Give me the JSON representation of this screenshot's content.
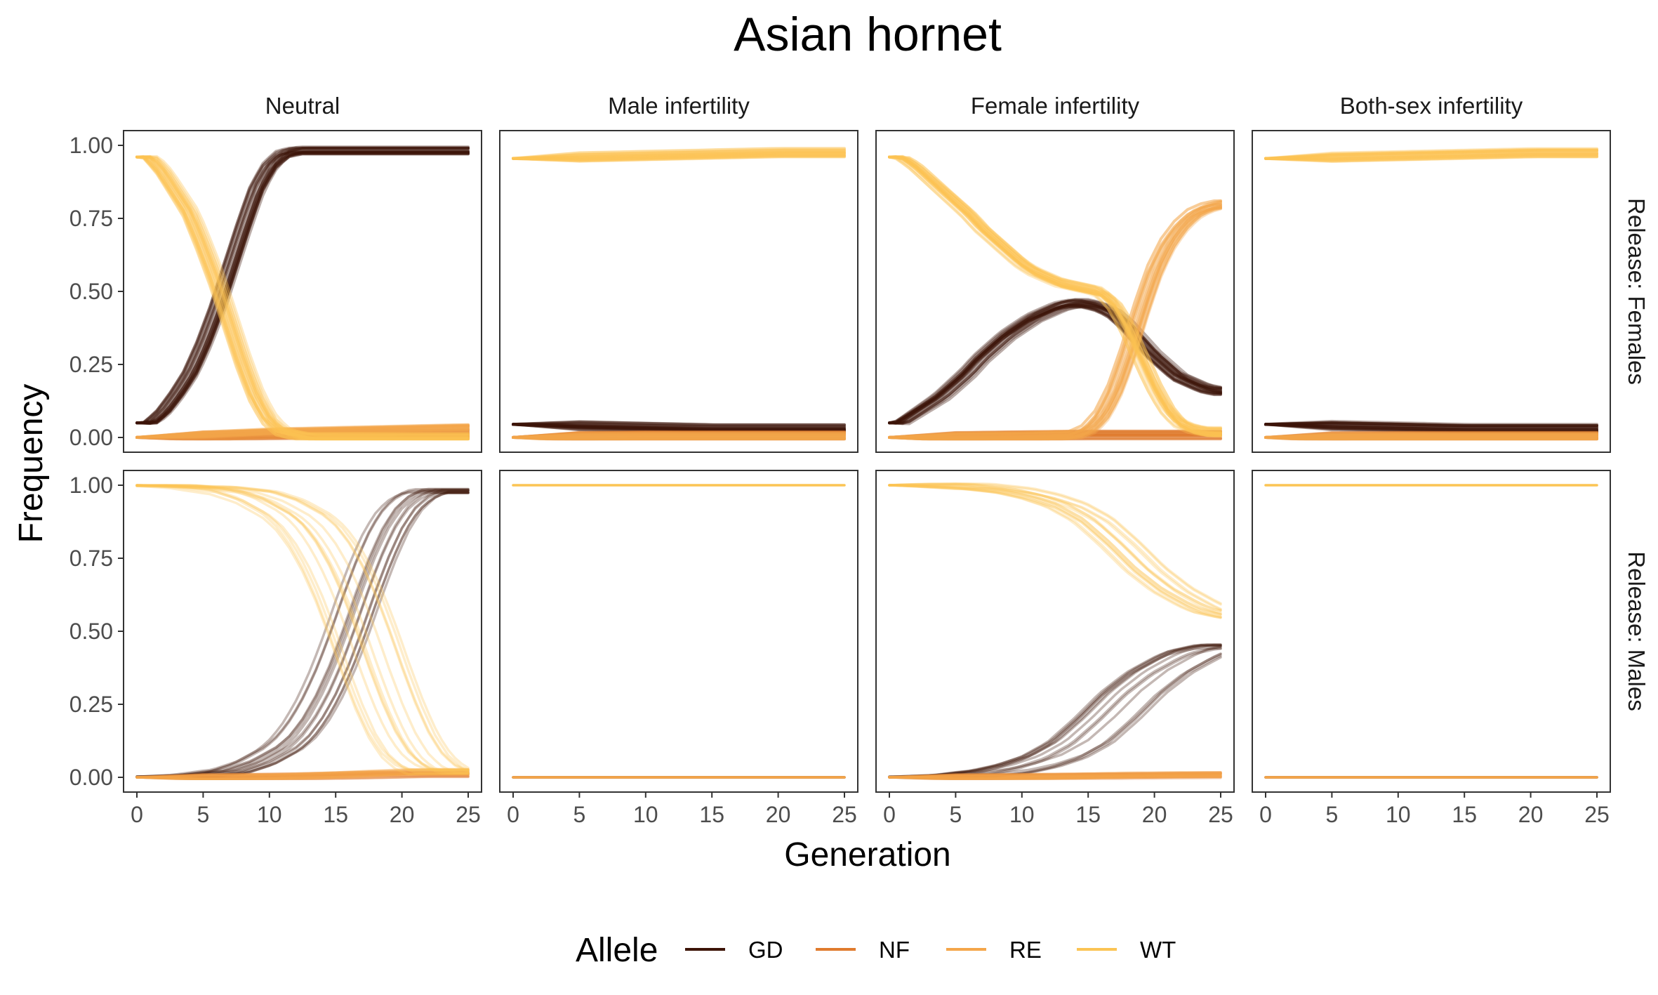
{
  "chart_data": {
    "type": "line",
    "title": "Asian hornet",
    "xlabel": "Generation",
    "ylabel": "Frequency",
    "xlim": [
      0,
      25
    ],
    "ylim": [
      0,
      1
    ],
    "x_ticks": [
      "0",
      "5",
      "10",
      "15",
      "20",
      "25"
    ],
    "y_ticks": [
      "0.00",
      "0.25",
      "0.50",
      "0.75",
      "1.00"
    ],
    "columns": [
      "Neutral",
      "Male infertility",
      "Female infertility",
      "Both-sex infertility"
    ],
    "rows": [
      "Release: Females",
      "Release: Males"
    ],
    "legend": {
      "title": "Allele",
      "position": "bottom",
      "items": [
        {
          "name": "GD",
          "color": "#3d1408"
        },
        {
          "name": "NF",
          "color": "#e07b2e"
        },
        {
          "name": "RE",
          "color": "#f4a64a"
        },
        {
          "name": "WT",
          "color": "#fbc454"
        }
      ]
    },
    "panels": [
      {
        "row": "Release: Females",
        "col": "Neutral",
        "series": [
          {
            "name": "GD",
            "x": [
              0,
              1,
              2,
              3,
              4,
              5,
              6,
              7,
              8,
              9,
              10,
              11,
              12,
              13,
              15,
              20,
              25
            ],
            "y": [
              0.05,
              0.05,
              0.09,
              0.15,
              0.22,
              0.32,
              0.44,
              0.58,
              0.72,
              0.85,
              0.93,
              0.97,
              0.98,
              0.98,
              0.98,
              0.98,
              0.98
            ]
          },
          {
            "name": "NF",
            "x": [
              0,
              5,
              10,
              15,
              20,
              25
            ],
            "y": [
              0.0,
              0.005,
              0.01,
              0.012,
              0.012,
              0.012
            ]
          },
          {
            "name": "RE",
            "x": [
              0,
              5,
              10,
              15,
              20,
              25
            ],
            "y": [
              0.0,
              0.005,
              0.015,
              0.02,
              0.025,
              0.03
            ]
          },
          {
            "name": "WT",
            "x": [
              0,
              1,
              2,
              3,
              4,
              5,
              6,
              7,
              8,
              9,
              10,
              11,
              12,
              13,
              15,
              20,
              25
            ],
            "y": [
              0.96,
              0.96,
              0.91,
              0.84,
              0.77,
              0.66,
              0.54,
              0.4,
              0.26,
              0.14,
              0.06,
              0.02,
              0.01,
              0.0,
              0.0,
              0.0,
              0.0
            ]
          }
        ]
      },
      {
        "row": "Release: Females",
        "col": "Male infertility",
        "series": [
          {
            "name": "GD",
            "x": [
              0,
              5,
              10,
              15,
              20,
              25
            ],
            "y": [
              0.045,
              0.04,
              0.035,
              0.03,
              0.03,
              0.03
            ]
          },
          {
            "name": "NF",
            "x": [
              0,
              5,
              10,
              15,
              20,
              25
            ],
            "y": [
              0.0,
              0.003,
              0.005,
              0.005,
              0.005,
              0.005
            ]
          },
          {
            "name": "RE",
            "x": [
              0,
              5,
              10,
              15,
              20,
              25
            ],
            "y": [
              0.0,
              0.001,
              0.002,
              0.002,
              0.002,
              0.002
            ]
          },
          {
            "name": "WT",
            "x": [
              0,
              5,
              10,
              15,
              20,
              25
            ],
            "y": [
              0.955,
              0.96,
              0.965,
              0.97,
              0.975,
              0.975
            ]
          }
        ]
      },
      {
        "row": "Release: Females",
        "col": "Female infertility",
        "series": [
          {
            "name": "GD",
            "x": [
              0,
              1,
              2,
              3,
              4,
              5,
              6,
              7,
              8,
              9,
              10,
              11,
              12,
              13,
              14,
              15,
              16,
              17,
              18,
              19,
              20,
              21,
              22,
              23,
              24,
              25
            ],
            "y": [
              0.05,
              0.05,
              0.08,
              0.11,
              0.14,
              0.18,
              0.22,
              0.27,
              0.31,
              0.35,
              0.38,
              0.41,
              0.43,
              0.45,
              0.46,
              0.46,
              0.45,
              0.43,
              0.39,
              0.34,
              0.29,
              0.25,
              0.21,
              0.19,
              0.17,
              0.16
            ]
          },
          {
            "name": "NF",
            "x": [
              0,
              5,
              10,
              15,
              20,
              25
            ],
            "y": [
              0.0,
              0.003,
              0.006,
              0.008,
              0.008,
              0.008
            ]
          },
          {
            "name": "RE",
            "x": [
              0,
              5,
              10,
              14,
              15,
              16,
              17,
              18,
              19,
              20,
              21,
              22,
              23,
              24,
              25
            ],
            "y": [
              0.0,
              0.003,
              0.005,
              0.01,
              0.03,
              0.08,
              0.17,
              0.3,
              0.45,
              0.58,
              0.67,
              0.73,
              0.77,
              0.79,
              0.8
            ]
          },
          {
            "name": "WT",
            "x": [
              0,
              1,
              2,
              3,
              4,
              5,
              6,
              7,
              8,
              9,
              10,
              11,
              12,
              13,
              14,
              15,
              16,
              17,
              18,
              19,
              20,
              21,
              22,
              23,
              24,
              25
            ],
            "y": [
              0.96,
              0.96,
              0.93,
              0.89,
              0.85,
              0.81,
              0.77,
              0.72,
              0.68,
              0.64,
              0.6,
              0.57,
              0.55,
              0.53,
              0.52,
              0.51,
              0.5,
              0.46,
              0.38,
              0.28,
              0.18,
              0.1,
              0.05,
              0.03,
              0.02,
              0.02
            ]
          }
        ]
      },
      {
        "row": "Release: Females",
        "col": "Both-sex infertility",
        "series": [
          {
            "name": "GD",
            "x": [
              0,
              5,
              10,
              15,
              20,
              25
            ],
            "y": [
              0.045,
              0.04,
              0.035,
              0.03,
              0.03,
              0.03
            ]
          },
          {
            "name": "NF",
            "x": [
              0,
              5,
              10,
              15,
              20,
              25
            ],
            "y": [
              0.0,
              0.002,
              0.003,
              0.003,
              0.003,
              0.003
            ]
          },
          {
            "name": "RE",
            "x": [
              0,
              5,
              10,
              15,
              20,
              25
            ],
            "y": [
              0.0,
              0.002,
              0.003,
              0.003,
              0.003,
              0.003
            ]
          },
          {
            "name": "WT",
            "x": [
              0,
              5,
              10,
              15,
              20,
              25
            ],
            "y": [
              0.955,
              0.96,
              0.965,
              0.97,
              0.975,
              0.975
            ]
          }
        ]
      },
      {
        "row": "Release: Males",
        "col": "Neutral",
        "series": [
          {
            "name": "GD",
            "x": [
              0,
              5,
              8,
              10,
              12,
              13,
              14,
              15,
              16,
              17,
              18,
              19,
              20,
              21,
              22,
              23,
              24,
              25
            ],
            "y": [
              0.0,
              0.005,
              0.02,
              0.05,
              0.1,
              0.14,
              0.2,
              0.28,
              0.38,
              0.5,
              0.63,
              0.75,
              0.85,
              0.92,
              0.96,
              0.98,
              0.98,
              0.98
            ]
          },
          {
            "name": "NF",
            "x": [
              0,
              10,
              15,
              20,
              25
            ],
            "y": [
              0.0,
              0.002,
              0.005,
              0.01,
              0.01
            ]
          },
          {
            "name": "RE",
            "x": [
              0,
              10,
              15,
              20,
              25
            ],
            "y": [
              0.0,
              0.003,
              0.01,
              0.02,
              0.02
            ]
          },
          {
            "name": "WT",
            "x": [
              0,
              5,
              8,
              10,
              12,
              13,
              14,
              15,
              16,
              17,
              18,
              19,
              20,
              21,
              22,
              23,
              24,
              25
            ],
            "y": [
              1.0,
              0.995,
              0.98,
              0.95,
              0.9,
              0.86,
              0.8,
              0.72,
              0.62,
              0.5,
              0.37,
              0.25,
              0.15,
              0.08,
              0.04,
              0.02,
              0.02,
              0.02
            ]
          }
        ]
      },
      {
        "row": "Release: Males",
        "col": "Male infertility",
        "series": [
          {
            "name": "GD",
            "x": [
              0,
              25
            ],
            "y": [
              0.0,
              0.0
            ]
          },
          {
            "name": "NF",
            "x": [
              0,
              25
            ],
            "y": [
              0.0,
              0.0
            ]
          },
          {
            "name": "RE",
            "x": [
              0,
              25
            ],
            "y": [
              0.0,
              0.0
            ]
          },
          {
            "name": "WT",
            "x": [
              0,
              25
            ],
            "y": [
              1.0,
              1.0
            ]
          }
        ]
      },
      {
        "row": "Release: Males",
        "col": "Female infertility",
        "series": [
          {
            "name": "GD",
            "x": [
              0,
              5,
              8,
              10,
              12,
              14,
              16,
              18,
              20,
              22,
              23,
              24,
              25
            ],
            "y": [
              0.0,
              0.005,
              0.02,
              0.04,
              0.07,
              0.12,
              0.2,
              0.29,
              0.36,
              0.41,
              0.43,
              0.44,
              0.45
            ]
          },
          {
            "name": "NF",
            "x": [
              0,
              10,
              15,
              20,
              25
            ],
            "y": [
              0.0,
              0.002,
              0.004,
              0.006,
              0.008
            ]
          },
          {
            "name": "RE",
            "x": [
              0,
              10,
              15,
              20,
              25
            ],
            "y": [
              0.0,
              0.002,
              0.004,
              0.008,
              0.01
            ]
          },
          {
            "name": "WT",
            "x": [
              0,
              5,
              8,
              10,
              12,
              14,
              16,
              18,
              20,
              22,
              23,
              24,
              25
            ],
            "y": [
              1.0,
              0.995,
              0.98,
              0.96,
              0.93,
              0.88,
              0.8,
              0.71,
              0.64,
              0.59,
              0.57,
              0.56,
              0.55
            ]
          }
        ]
      },
      {
        "row": "Release: Males",
        "col": "Both-sex infertility",
        "series": [
          {
            "name": "GD",
            "x": [
              0,
              25
            ],
            "y": [
              0.0,
              0.0
            ]
          },
          {
            "name": "NF",
            "x": [
              0,
              25
            ],
            "y": [
              0.0,
              0.0
            ]
          },
          {
            "name": "RE",
            "x": [
              0,
              25
            ],
            "y": [
              0.0,
              0.0
            ]
          },
          {
            "name": "WT",
            "x": [
              0,
              25
            ],
            "y": [
              1.0,
              1.0
            ]
          }
        ]
      }
    ]
  }
}
